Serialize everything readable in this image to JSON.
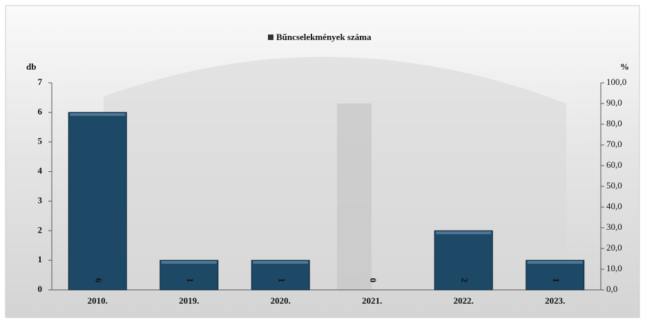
{
  "chart_data": {
    "type": "bar",
    "legend": "Bűncselekmények száma",
    "ylabel": "db",
    "y2label": "%",
    "categories": [
      "2010.",
      "2019.",
      "2020.",
      "2021.",
      "2022.",
      "2023."
    ],
    "series": [
      {
        "name": "Bűncselekmények száma",
        "color": "#1d4866",
        "values": [
          6,
          1,
          1,
          0,
          2,
          1
        ]
      }
    ],
    "ylim": [
      0,
      7
    ],
    "yticks": [
      0,
      1,
      2,
      3,
      4,
      5,
      6,
      7
    ],
    "y2lim": [
      0,
      100
    ],
    "y2ticks": [
      {
        "value": 0,
        "label": "0,0"
      },
      {
        "value": 10,
        "label": "10,0"
      },
      {
        "value": 20,
        "label": "20,0"
      },
      {
        "value": 30,
        "label": "30,0"
      },
      {
        "value": 40,
        "label": "40,0"
      },
      {
        "value": 50,
        "label": "50,0"
      },
      {
        "value": 60,
        "label": "60,0"
      },
      {
        "value": 70,
        "label": "70,0"
      },
      {
        "value": 80,
        "label": "80,0"
      },
      {
        "value": 90,
        "label": "90,0"
      },
      {
        "value": 100,
        "label": "100,0"
      }
    ],
    "grid": false
  }
}
